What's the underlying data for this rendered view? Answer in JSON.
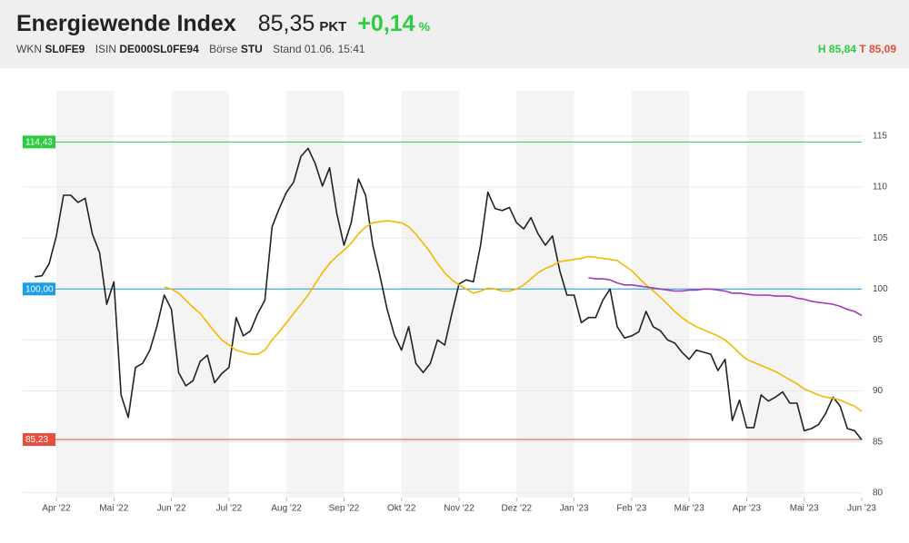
{
  "header": {
    "title": "Energiewende Index",
    "price": "85,35",
    "unit": "PKT",
    "change": "+0,14",
    "change_unit": "%",
    "meta": [
      {
        "label": "WKN",
        "value": "SL0FE9"
      },
      {
        "label": "ISIN",
        "value": "DE000SL0FE94"
      },
      {
        "label": "Börse",
        "value": "STU"
      }
    ],
    "stand": "Stand 01.06. 15:41",
    "high": "H 85,84",
    "low": "T 85,09"
  },
  "chart_data": {
    "type": "line",
    "x": [
      -0.375,
      -0.25,
      -0.125,
      0,
      0.125,
      0.25,
      0.375,
      0.5,
      0.625,
      0.75,
      0.875,
      1,
      1.125,
      1.25,
      1.375,
      1.5,
      1.625,
      1.75,
      1.875,
      2,
      2.125,
      2.25,
      2.375,
      2.5,
      2.625,
      2.75,
      2.875,
      3,
      3.125,
      3.25,
      3.375,
      3.5,
      3.625,
      3.75,
      3.875,
      4,
      4.125,
      4.25,
      4.375,
      4.5,
      4.625,
      4.75,
      4.875,
      5,
      5.125,
      5.25,
      5.375,
      5.5,
      5.625,
      5.75,
      5.875,
      6,
      6.125,
      6.25,
      6.375,
      6.5,
      6.625,
      6.75,
      6.875,
      7,
      7.125,
      7.25,
      7.375,
      7.5,
      7.625,
      7.75,
      7.875,
      8,
      8.125,
      8.25,
      8.375,
      8.5,
      8.625,
      8.75,
      8.875,
      9,
      9.125,
      9.25,
      9.375,
      9.5,
      9.625,
      9.75,
      9.875,
      10,
      10.125,
      10.25,
      10.375,
      10.5,
      10.625,
      10.75,
      10.875,
      11,
      11.125,
      11.25,
      11.375,
      11.5,
      11.625,
      11.75,
      11.875,
      12,
      12.125,
      12.25,
      12.375,
      12.5,
      12.625,
      12.75,
      12.875,
      13,
      13.125,
      13.25,
      13.375,
      13.5,
      13.625,
      13.75,
      13.875,
      14
    ],
    "series": [
      {
        "color": "#222222",
        "values": [
          101.2,
          101.3,
          102.5,
          105.2,
          109.2,
          109.2,
          108.5,
          108.9,
          105.4,
          103.6,
          98.5,
          100.7,
          89.6,
          87.4,
          92.3,
          92.7,
          94.0,
          96.4,
          99.4,
          98.0,
          91.8,
          90.5,
          91.0,
          92.9,
          93.5,
          90.8,
          91.7,
          92.3,
          97.2,
          95.4,
          95.9,
          97.6,
          98.9,
          106.1,
          107.9,
          109.5,
          110.5,
          113.0,
          113.8,
          112.3,
          110.1,
          111.9,
          107.4,
          104.3,
          106.5,
          110.8,
          109.2,
          104.3,
          101.3,
          98.0,
          95.5,
          94.0,
          96.3,
          92.7,
          91.8,
          92.7,
          95.0,
          94.5,
          97.6,
          100.5,
          100.9,
          100.7,
          104.3,
          109.5,
          107.9,
          107.7,
          108.0,
          106.5,
          105.9,
          107.0,
          105.4,
          104.3,
          105.2,
          101.8,
          99.4,
          99.4,
          96.7,
          97.2,
          97.2,
          98.9,
          100.0,
          96.3,
          95.2,
          95.4,
          95.8,
          97.8,
          96.3,
          95.9,
          95.0,
          94.7,
          93.8,
          93.1,
          94.0,
          93.8,
          93.6,
          92.0,
          93.1,
          87.1,
          89.1,
          86.4,
          86.4,
          89.6,
          89.0,
          89.4,
          89.9,
          88.8,
          88.8,
          86.1,
          86.3,
          86.7,
          87.8,
          89.4,
          88.5,
          86.3,
          86.1,
          85.2
        ]
      },
      {
        "color": "#f5b700",
        "values": [
          null,
          null,
          null,
          null,
          null,
          null,
          null,
          null,
          null,
          null,
          null,
          null,
          null,
          null,
          null,
          null,
          null,
          null,
          100.2,
          100,
          99.6,
          98.9,
          98.2,
          97.6,
          96.7,
          95.8,
          95.0,
          94.5,
          94.0,
          93.8,
          93.6,
          93.6,
          94.0,
          95.0,
          95.8,
          96.7,
          97.6,
          98.5,
          99.4,
          100.5,
          101.6,
          102.5,
          103.2,
          103.8,
          104.5,
          105.4,
          106.1,
          106.5,
          106.6,
          106.7,
          106.6,
          106.5,
          106.1,
          105.4,
          104.5,
          103.6,
          102.5,
          101.6,
          100.9,
          100.4,
          100.0,
          99.6,
          99.8,
          100.1,
          100.0,
          99.8,
          99.8,
          100.0,
          100.4,
          101.0,
          101.6,
          102.0,
          102.3,
          102.7,
          102.8,
          102.9,
          103.0,
          103.2,
          103.1,
          103.0,
          102.9,
          102.8,
          102.3,
          101.8,
          101.1,
          100.4,
          99.8,
          99.2,
          98.5,
          97.8,
          97.2,
          96.7,
          96.3,
          96.0,
          95.7,
          95.4,
          95.0,
          94.4,
          93.7,
          93.1,
          92.8,
          92.5,
          92.2,
          91.9,
          91.5,
          91.1,
          90.7,
          90.2,
          89.9,
          89.6,
          89.4,
          89.3,
          89.1,
          88.8,
          88.5,
          88.0
        ]
      },
      {
        "color": "#a03cb4",
        "values": [
          null,
          null,
          null,
          null,
          null,
          null,
          null,
          null,
          null,
          null,
          null,
          null,
          null,
          null,
          null,
          null,
          null,
          null,
          null,
          null,
          null,
          null,
          null,
          null,
          null,
          null,
          null,
          null,
          null,
          null,
          null,
          null,
          null,
          null,
          null,
          null,
          null,
          null,
          null,
          null,
          null,
          null,
          null,
          null,
          null,
          null,
          null,
          null,
          null,
          null,
          null,
          null,
          null,
          null,
          null,
          null,
          null,
          null,
          null,
          null,
          null,
          null,
          null,
          null,
          null,
          null,
          null,
          null,
          null,
          null,
          null,
          null,
          null,
          null,
          null,
          null,
          null,
          101.1,
          101.0,
          101.0,
          100.9,
          100.6,
          100.4,
          100.4,
          100.3,
          100.2,
          100.1,
          100.0,
          99.9,
          99.8,
          99.8,
          99.9,
          99.9,
          100.0,
          100.0,
          99.9,
          99.8,
          99.6,
          99.6,
          99.5,
          99.4,
          99.4,
          99.4,
          99.3,
          99.3,
          99.3,
          99.1,
          99.0,
          98.8,
          98.7,
          98.6,
          98.5,
          98.3,
          98.0,
          97.8,
          97.4
        ]
      }
    ],
    "levels": [
      {
        "value": 114.43,
        "label": "114,43",
        "color": "#2ecc40"
      },
      {
        "value": 100.0,
        "label": "100,00",
        "color": "#1a9ee6"
      },
      {
        "value": 85.23,
        "label": "85,23",
        "color": "#e74c3c"
      }
    ],
    "xlim": [
      -0.585,
      14.0
    ],
    "xticks": [
      {
        "value": 0,
        "label": "Apr '22"
      },
      {
        "value": 1,
        "label": "Mai '22"
      },
      {
        "value": 2,
        "label": "Jun '22"
      },
      {
        "value": 3,
        "label": "Jul '22"
      },
      {
        "value": 4,
        "label": "Aug '22"
      },
      {
        "value": 5,
        "label": "Sep '22"
      },
      {
        "value": 6,
        "label": "Okt '22"
      },
      {
        "value": 7,
        "label": "Nov '22"
      },
      {
        "value": 8,
        "label": "Dez '22"
      },
      {
        "value": 9,
        "label": "Jan '23"
      },
      {
        "value": 10,
        "label": "Feb '23"
      },
      {
        "value": 11,
        "label": "Mär '23"
      },
      {
        "value": 12,
        "label": "Apr '23"
      },
      {
        "value": 13,
        "label": "Mai '23"
      },
      {
        "value": 14,
        "label": "Jun '23"
      }
    ],
    "ylim": [
      79.8,
      119.45
    ],
    "yticks": [
      80,
      85,
      90,
      95,
      100,
      105,
      110,
      115
    ],
    "grid": true,
    "shade_alternate": true
  }
}
